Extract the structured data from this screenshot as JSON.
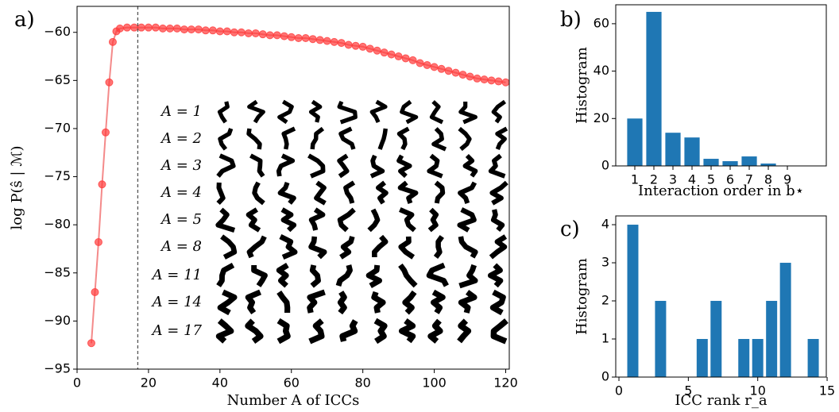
{
  "chart_data": [
    {
      "type": "line",
      "panel_label": "a)",
      "xlabel": "Number A of ICCs",
      "ylabel": "log P(ŝ | ℳ)",
      "x": [
        4,
        5,
        6,
        7,
        8,
        9,
        10,
        11,
        12,
        14,
        16,
        18,
        20,
        22,
        24,
        26,
        28,
        30,
        32,
        34,
        36,
        38,
        40,
        42,
        44,
        46,
        48,
        50,
        52,
        54,
        56,
        58,
        60,
        62,
        64,
        66,
        68,
        70,
        72,
        74,
        76,
        78,
        80,
        82,
        84,
        86,
        88,
        90,
        92,
        94,
        96,
        98,
        100,
        102,
        104,
        106,
        108,
        110,
        112,
        114,
        116,
        118,
        120
      ],
      "values": [
        -92.3,
        -87,
        -81.8,
        -75.8,
        -70.4,
        -65.2,
        -61,
        -59.9,
        -59.6,
        -59.5,
        -59.5,
        -59.5,
        -59.5,
        -59.5,
        -59.6,
        -59.6,
        -59.6,
        -59.7,
        -59.7,
        -59.7,
        -59.8,
        -59.8,
        -59.9,
        -59.9,
        -60,
        -60,
        -60.1,
        -60.1,
        -60.2,
        -60.3,
        -60.3,
        -60.4,
        -60.5,
        -60.6,
        -60.6,
        -60.7,
        -60.8,
        -60.9,
        -61,
        -61.1,
        -61.3,
        -61.4,
        -61.5,
        -61.7,
        -61.9,
        -62.1,
        -62.3,
        -62.5,
        -62.7,
        -62.9,
        -63.2,
        -63.4,
        -63.6,
        -63.8,
        -64,
        -64.2,
        -64.4,
        -64.6,
        -64.8,
        -64.9,
        -65,
        -65.1,
        -65.2
      ],
      "color": "#ff3b3b",
      "line_color": "#f48a8a",
      "vline": 17,
      "xlim": [
        0,
        121
      ],
      "ylim": [
        -95,
        -57.3
      ],
      "xticks": [
        0,
        20,
        40,
        60,
        80,
        100,
        120
      ],
      "yticks": [
        {
          "value": -95,
          "label": "−95"
        },
        {
          "value": -90,
          "label": "−90"
        },
        {
          "value": -85,
          "label": "−85"
        },
        {
          "value": -80,
          "label": "−80"
        },
        {
          "value": -75,
          "label": "−75"
        },
        {
          "value": -70,
          "label": "−70"
        },
        {
          "value": -65,
          "label": "−65"
        },
        {
          "value": -60,
          "label": "−60"
        }
      ],
      "row_labels": [
        "A = 1",
        "A = 2",
        "A = 3",
        "A = 4",
        "A = 5",
        "A = 8",
        "A = 11",
        "A = 14",
        "A = 17"
      ]
    },
    {
      "type": "bar",
      "panel_label": "b)",
      "xlabel": "Interaction order in b⋆",
      "ylabel": "Histogram",
      "x": [
        1,
        2,
        3,
        4,
        5,
        6,
        7,
        8,
        9
      ],
      "values": [
        20,
        65,
        14,
        12,
        3,
        2,
        4,
        1,
        0
      ],
      "color": "#1f77b4",
      "xlim": [
        0,
        11.04
      ],
      "ylim": [
        0,
        68
      ],
      "xticks": [
        1,
        2,
        3,
        4,
        5,
        6,
        7,
        8,
        9
      ],
      "yticks": [
        0,
        20,
        40,
        60
      ]
    },
    {
      "type": "bar",
      "panel_label": "c)",
      "xlabel": "ICC rank r_a",
      "ylabel": "Histogram",
      "x": [
        1,
        3,
        6,
        7,
        9,
        10,
        11,
        12,
        14
      ],
      "values": [
        4,
        2,
        1,
        2,
        1,
        1,
        2,
        3,
        1
      ],
      "color": "#1f77b4",
      "xlim": [
        -0.23,
        14.94
      ],
      "ylim": [
        0,
        4.23
      ],
      "xticks": [
        0,
        5,
        10,
        15
      ],
      "yticks": [
        0,
        1,
        2,
        3,
        4
      ]
    }
  ]
}
